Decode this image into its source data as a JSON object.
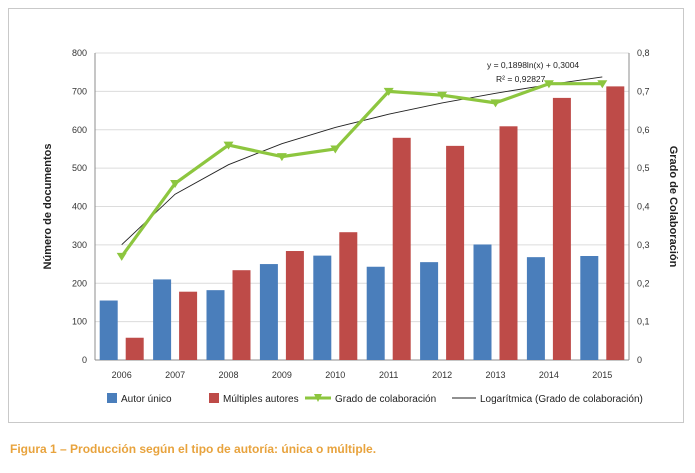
{
  "caption": "Figura 1 – Producción según el tipo de autoría: única o múltiple.",
  "chart_data": {
    "type": "bar",
    "categories": [
      "2006",
      "2007",
      "2008",
      "2009",
      "2010",
      "2011",
      "2012",
      "2013",
      "2014",
      "2015"
    ],
    "series": [
      {
        "name": "Autor único",
        "type": "bar",
        "axis": "left",
        "color": "#4a7ebb",
        "values": [
          155,
          210,
          182,
          250,
          272,
          243,
          255,
          301,
          268,
          271
        ]
      },
      {
        "name": "Múltiples autores",
        "type": "bar",
        "axis": "left",
        "color": "#be4b48",
        "values": [
          58,
          178,
          234,
          284,
          333,
          579,
          558,
          609,
          683,
          713
        ]
      },
      {
        "name": "Grado de colaboración",
        "type": "line",
        "axis": "right",
        "color": "#8dc63f",
        "values": [
          0.27,
          0.46,
          0.56,
          0.53,
          0.55,
          0.7,
          0.69,
          0.67,
          0.72,
          0.72
        ]
      },
      {
        "name": "Logarítmica (Grado de colaboración)",
        "type": "trend",
        "axis": "right",
        "color": "#222222",
        "values": [
          0.3004,
          0.432,
          0.509,
          0.5636,
          0.6059,
          0.6405,
          0.6698,
          0.6951,
          0.7175,
          0.7375
        ]
      }
    ],
    "ylabel": "Número de documentos",
    "y2label": "Grado de Colaboración",
    "ylim": [
      0,
      800
    ],
    "y2lim": [
      0,
      0.8
    ],
    "yticks": [
      "0",
      "100",
      "200",
      "300",
      "400",
      "500",
      "600",
      "700",
      "800"
    ],
    "y2ticks": [
      "0",
      "0,1",
      "0,2",
      "0,3",
      "0,4",
      "0,5",
      "0,6",
      "0,7",
      "0,8"
    ],
    "annotations": [
      "y = 0,1898ln(x) + 0,3004",
      "R² = 0,92827"
    ],
    "legend": "bottom",
    "grid": true
  }
}
